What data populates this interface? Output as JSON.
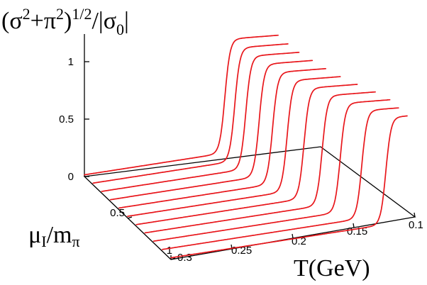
{
  "chart_data": {
    "type": "line",
    "zlabel_parts": {
      "a": "(σ",
      "a_sup": "2",
      "b": "+π",
      "b_sup": "2",
      "c": ")",
      "c_sup": "1/2",
      "d": "/|σ",
      "d_sub": "0",
      "e": "|"
    },
    "ylabel_parts": {
      "a": "μ",
      "a_sub": "I",
      "b": "/m",
      "b_sub": "π"
    },
    "xlabel": "T(GeV)",
    "z_ticks": [
      "0",
      "0.5",
      "1"
    ],
    "mu_ticks": [
      "0.5",
      "1"
    ],
    "t_ticks": [
      "0.3",
      "0.25",
      "0.2",
      "0.15",
      "0.1"
    ],
    "xlim": [
      0.1,
      0.3
    ],
    "ylim": [
      0,
      1
    ],
    "zlim": [
      0,
      1.2
    ],
    "mu_values": [
      0.0,
      0.1,
      0.2,
      0.3,
      0.4,
      0.5,
      0.6,
      0.7,
      0.8,
      0.9,
      1.0
    ],
    "critical_T_GeV": [
      0.181,
      0.18,
      0.178,
      0.174,
      0.17,
      0.165,
      0.158,
      0.15,
      0.142,
      0.131,
      0.118
    ],
    "plateau_value": 1.0,
    "curve_color": "#e8161b"
  }
}
